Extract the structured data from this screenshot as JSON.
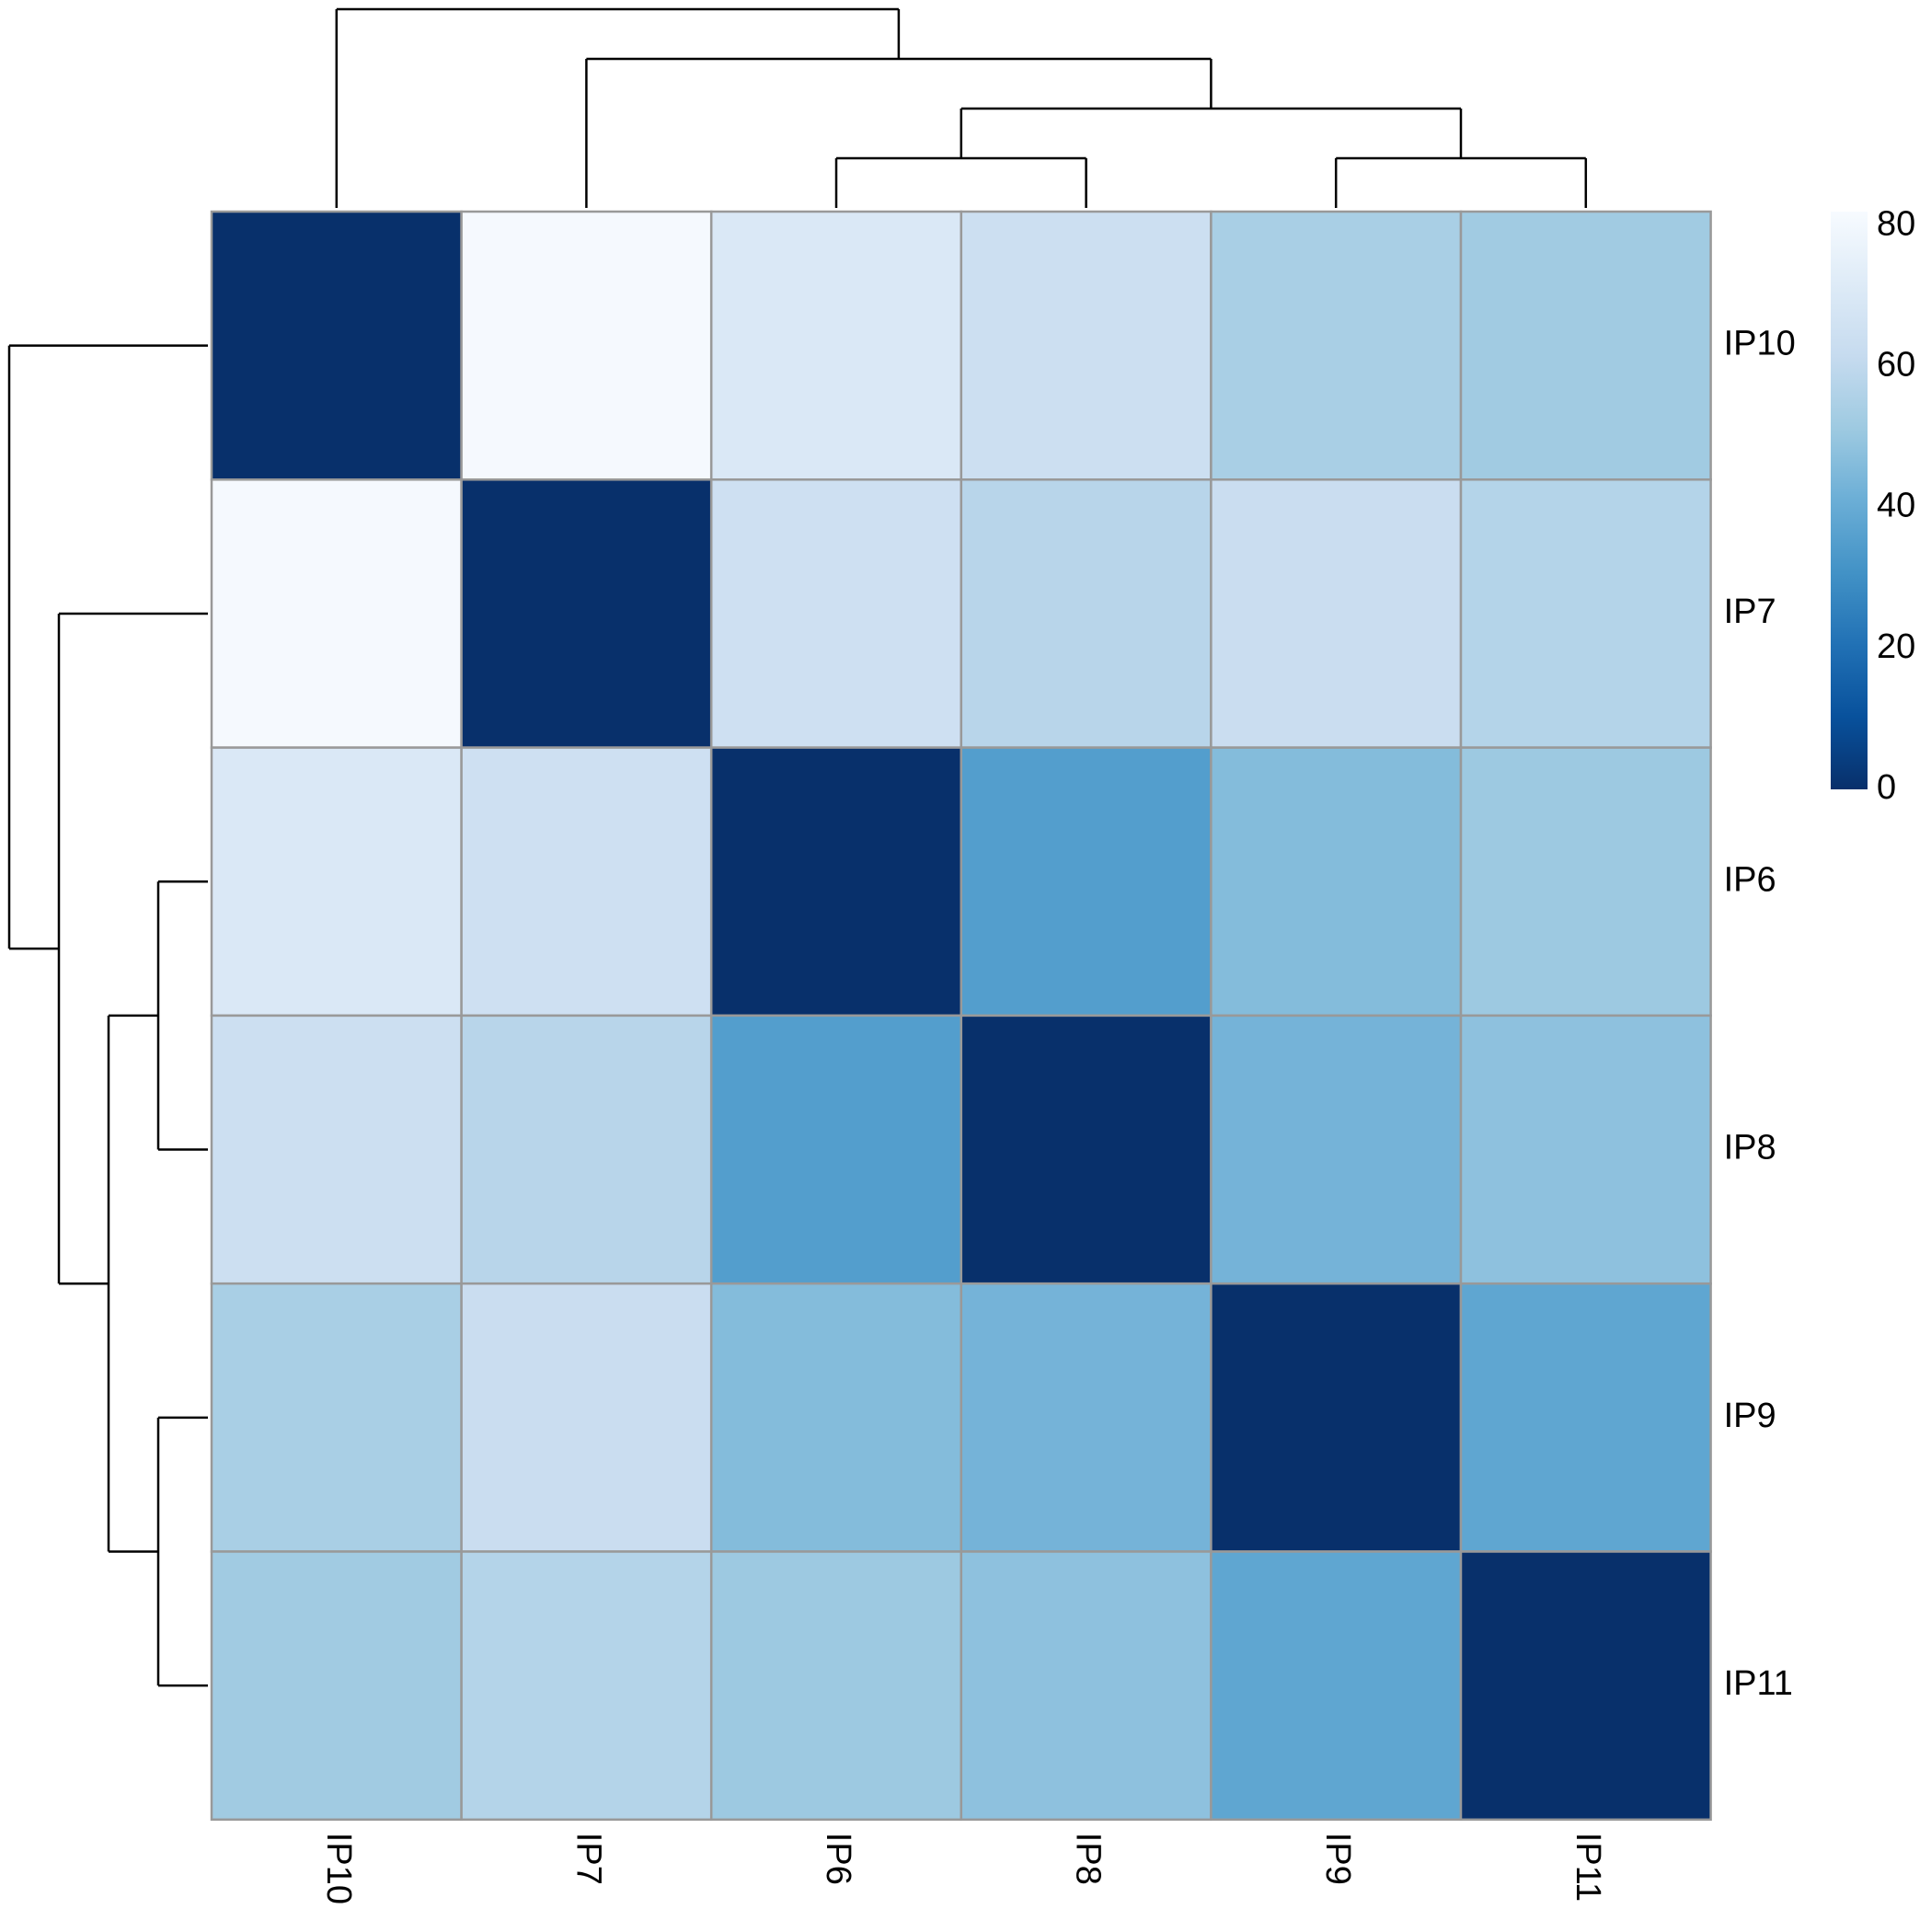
{
  "chart_data": {
    "type": "heatmap",
    "title": "",
    "xlabel": "",
    "ylabel": "",
    "row_labels": [
      "IP10",
      "IP7",
      "IP6",
      "IP8",
      "IP9",
      "IP11"
    ],
    "col_labels": [
      "IP10",
      "IP7",
      "IP6",
      "IP8",
      "IP9",
      "IP11"
    ],
    "values": [
      [
        0,
        81,
        70,
        64,
        54,
        52
      ],
      [
        81,
        0,
        65,
        58,
        63,
        57
      ],
      [
        70,
        65,
        0,
        35,
        46,
        51
      ],
      [
        64,
        58,
        35,
        0,
        43,
        48
      ],
      [
        54,
        63,
        46,
        43,
        0,
        38
      ],
      [
        52,
        57,
        51,
        48,
        38,
        0
      ]
    ],
    "color_scale": {
      "min": 0,
      "max": 82,
      "ticks": [
        0,
        20,
        40,
        60,
        80
      ],
      "tick_labels": [
        "0",
        "20",
        "40",
        "60",
        "80"
      ],
      "colors": [
        "#08306b",
        "#08519c",
        "#2171b5",
        "#4292c6",
        "#6baed6",
        "#9ecae1",
        "#c6dbef",
        "#deebf7",
        "#f7fbff"
      ]
    },
    "row_dendrogram": "(IP10,(IP7,((IP6,IP8),(IP9,IP11))))",
    "col_dendrogram": "(IP10,(IP7,((IP6,IP8),(IP9,IP11))))",
    "grid_line_color": "#999999",
    "legend_position": "top-right"
  }
}
